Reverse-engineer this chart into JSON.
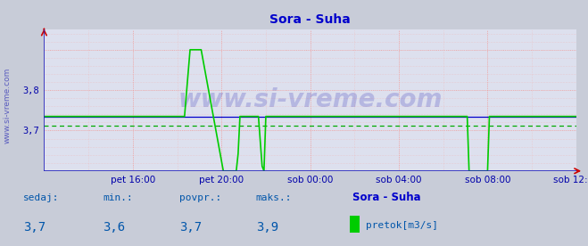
{
  "title": "Sora - Suha",
  "title_color": "#0000cc",
  "title_fontsize": 10,
  "bg_color": "#c8ccd8",
  "plot_bg_color": "#dde0ee",
  "grid_color": "#ee9999",
  "grid_minor_color": "#eebbbb",
  "line_color": "#00cc00",
  "line_width": 1.2,
  "tick_color": "#0000aa",
  "tick_fontsize": 7.5,
  "xmin": 0,
  "xmax": 288,
  "ymin": 3.6,
  "ymax": 3.95,
  "yticks": [
    3.7,
    3.8
  ],
  "x_tick_labels": [
    "pet 16:00",
    "pet 20:00",
    "sob 00:00",
    "sob 04:00",
    "sob 08:00",
    "sob 12:00"
  ],
  "x_tick_positions": [
    48,
    96,
    144,
    192,
    240,
    288
  ],
  "avg_line_value": 3.735,
  "avg_line_color": "#0000cc",
  "min_line_value": 3.712,
  "min_line_color": "#00aa00",
  "watermark": "www.si-vreme.com",
  "watermark_color": "#0000aa",
  "watermark_alpha": 0.18,
  "watermark_fontsize": 20,
  "sidebar_text": "www.si-vreme.com",
  "sidebar_color": "#0000aa",
  "sidebar_fontsize": 6.5,
  "footer_labels": [
    "sedaj:",
    "min.:",
    "povpr.:",
    "maks.:"
  ],
  "footer_values": [
    "3,7",
    "3,6",
    "3,7",
    "3,9"
  ],
  "footer_series_name": "Sora - Suha",
  "footer_legend_label": "pretok[m3/s]",
  "footer_label_color": "#0055aa",
  "footer_value_color": "#0055aa",
  "footer_series_color": "#0000cc",
  "footer_fontsize": 8,
  "footer_value_fontsize": 10,
  "spike1_start": 76,
  "spike1_peak_start": 80,
  "spike1_peak_end": 85,
  "spike1_down_end": 100,
  "spike2_up_start": 104,
  "spike2_up_end": 107,
  "spike2_down_start": 116,
  "spike2_down_end": 120,
  "dip_start": 229,
  "dip_end": 242,
  "baseline": 3.735,
  "peak": 3.9,
  "below": 3.55
}
